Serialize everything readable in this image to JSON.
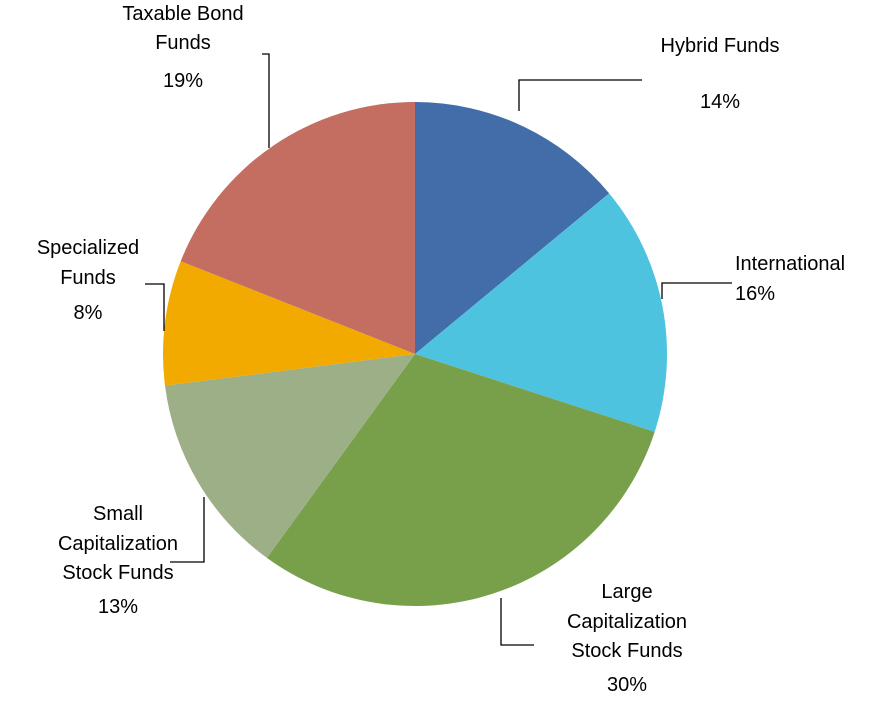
{
  "chart_data": {
    "type": "pie",
    "title": "",
    "slices": [
      {
        "name": "Hybrid Funds",
        "label_lines": [
          "Hybrid Funds"
        ],
        "value": 14,
        "value_label": "14%",
        "color": "#426DA9"
      },
      {
        "name": "International",
        "label_lines": [
          "International"
        ],
        "value": 16,
        "value_label": "16%",
        "color": "#4EC3DF"
      },
      {
        "name": "Large Capitalization Stock Funds",
        "label_lines": [
          "Large",
          "Capitalization",
          "Stock Funds"
        ],
        "value": 30,
        "value_label": "30%",
        "color": "#78A04A"
      },
      {
        "name": "Small Capitalization Stock Funds",
        "label_lines": [
          "Small",
          "Capitalization",
          "Stock Funds"
        ],
        "value": 13,
        "value_label": "13%",
        "color": "#9DAF86"
      },
      {
        "name": "Specialized Funds",
        "label_lines": [
          "Specialized",
          "Funds"
        ],
        "value": 8,
        "value_label": "8%",
        "color": "#F2A900"
      },
      {
        "name": "Taxable Bond Funds",
        "label_lines": [
          "Taxable Bond",
          "Funds"
        ],
        "value": 19,
        "value_label": "19%",
        "color": "#C46E62"
      }
    ],
    "start_angle": "12 o'clock",
    "direction": "clockwise",
    "legend": "none",
    "data_labels": "outside with leader lines"
  }
}
